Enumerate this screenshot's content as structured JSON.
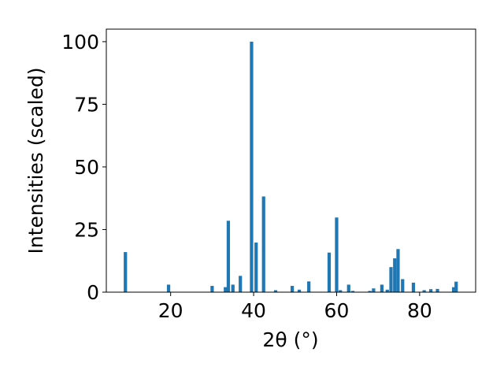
{
  "chart_data": {
    "type": "bar",
    "xlabel": "2θ (°)",
    "ylabel": "Intensities (scaled)",
    "xlim": [
      4.5,
      93.5
    ],
    "ylim": [
      0,
      105
    ],
    "xticks": [
      20,
      40,
      60,
      80
    ],
    "yticks": [
      0,
      25,
      50,
      75,
      100
    ],
    "grid": false,
    "bar_width": 0.8,
    "bar_color": "#1f77b4",
    "x": [
      9.1,
      19.5,
      30.0,
      33.2,
      33.9,
      35.0,
      36.8,
      39.5,
      40.6,
      42.4,
      45.3,
      49.3,
      51.0,
      53.3,
      58.2,
      60.0,
      60.9,
      62.9,
      63.9,
      68.0,
      68.9,
      70.9,
      72.2,
      73.1,
      74.0,
      74.8,
      75.9,
      78.5,
      81.1,
      82.7,
      84.3,
      88.2,
      88.8
    ],
    "values": [
      16.0,
      3.0,
      2.5,
      2.0,
      28.5,
      3.0,
      6.5,
      100.0,
      19.8,
      38.2,
      0.8,
      2.5,
      1.0,
      4.3,
      15.8,
      29.8,
      0.8,
      3.0,
      0.5,
      0.5,
      1.5,
      3.0,
      1.0,
      10.0,
      13.5,
      17.2,
      5.2,
      3.8,
      0.8,
      1.2,
      1.3,
      2.0,
      4.2
    ]
  }
}
